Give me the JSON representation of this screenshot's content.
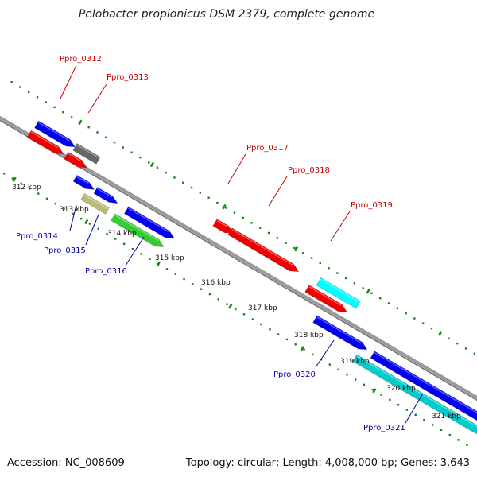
{
  "title": "Pelobacter propionicus DSM 2379, complete genome",
  "footer": {
    "accession": "Accession: NC_008609",
    "summary": "Topology: circular; Length: 4,008,000 bp; Genes: 3,643"
  },
  "colors": {
    "backbone": "#888888",
    "tick": "#118811",
    "forward_label": "#cc0000",
    "reverse_label": "#0000aa"
  },
  "kbp_labels": [
    "312 kbp",
    "313 kbp",
    "314 kbp",
    "315 kbp",
    "316 kbp",
    "317 kbp",
    "318 kbp",
    "319 kbp",
    "320 kbp",
    "321 kbp"
  ],
  "genes_labeled": [
    {
      "id": "Ppro_0312",
      "strand": "forward"
    },
    {
      "id": "Ppro_0313",
      "strand": "forward"
    },
    {
      "id": "Ppro_0314",
      "strand": "reverse"
    },
    {
      "id": "Ppro_0315",
      "strand": "reverse"
    },
    {
      "id": "Ppro_0316",
      "strand": "reverse"
    },
    {
      "id": "Ppro_0317",
      "strand": "forward"
    },
    {
      "id": "Ppro_0318",
      "strand": "forward"
    },
    {
      "id": "Ppro_0319",
      "strand": "forward"
    },
    {
      "id": "Ppro_0320",
      "strand": "reverse"
    },
    {
      "id": "Ppro_0321",
      "strand": "reverse"
    }
  ],
  "features": [
    {
      "name": "feature-blue-1",
      "color": "#0000ee"
    },
    {
      "name": "feature-gray-1",
      "color": "#666666"
    },
    {
      "name": "feature-red-1",
      "color": "#ee0000"
    },
    {
      "name": "feature-red-2",
      "color": "#ee0000"
    },
    {
      "name": "feature-blue-2",
      "color": "#0000ee"
    },
    {
      "name": "feature-blue-3",
      "color": "#0000ee"
    },
    {
      "name": "feature-khaki-1",
      "color": "#bbbb77"
    },
    {
      "name": "feature-blue-4",
      "color": "#0000ee"
    },
    {
      "name": "feature-green-1",
      "color": "#33cc33"
    },
    {
      "name": "feature-red-3",
      "color": "#ee0000"
    },
    {
      "name": "feature-red-4",
      "color": "#ee0000"
    },
    {
      "name": "feature-cyan-1",
      "color": "#00ffff"
    },
    {
      "name": "feature-red-5",
      "color": "#ee0000"
    },
    {
      "name": "feature-blue-5",
      "color": "#0000ee"
    },
    {
      "name": "feature-blue-6",
      "color": "#0000ee"
    },
    {
      "name": "feature-teal-1",
      "color": "#00cccc"
    }
  ]
}
